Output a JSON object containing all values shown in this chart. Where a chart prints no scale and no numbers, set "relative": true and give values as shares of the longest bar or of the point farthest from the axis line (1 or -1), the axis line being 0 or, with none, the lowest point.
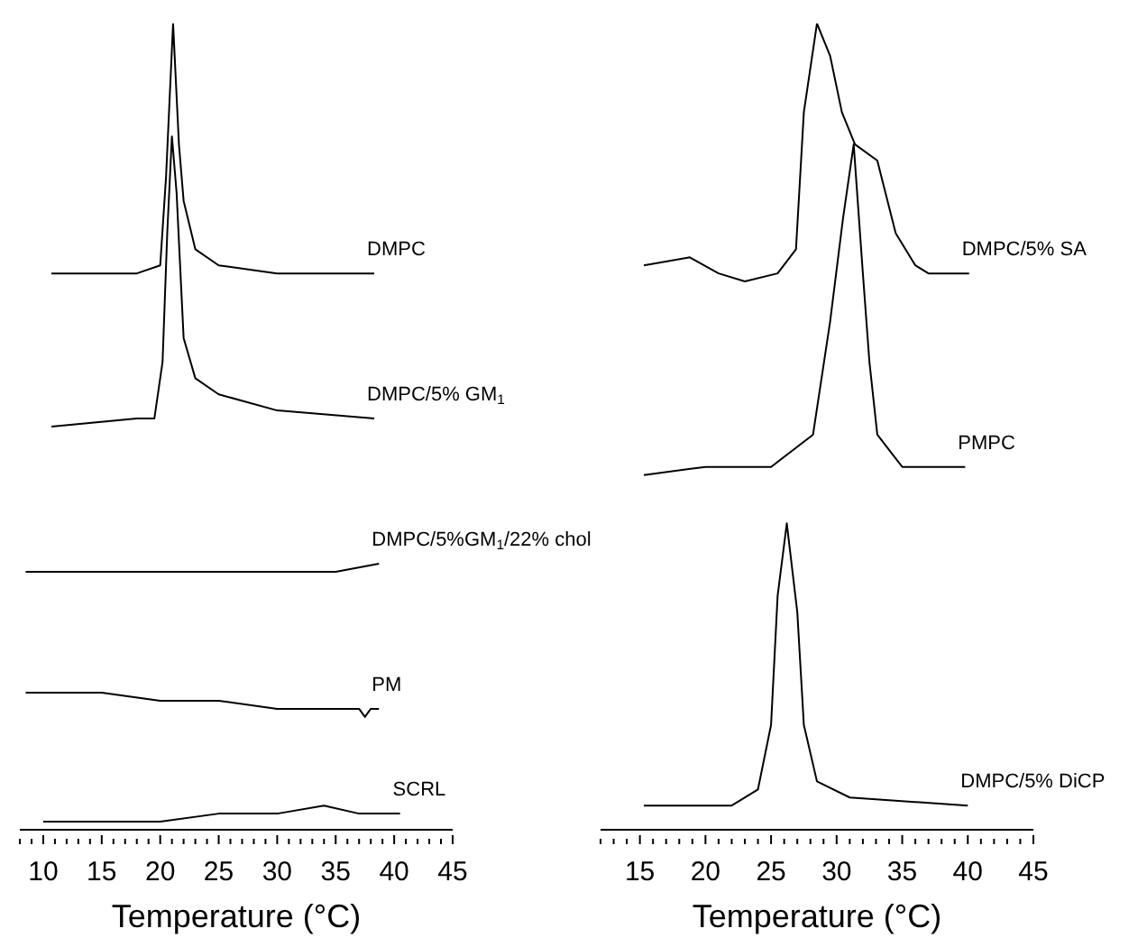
{
  "chart_data": [
    {
      "type": "line",
      "relative": true,
      "xlabel": "Temperature (°C)",
      "xlim": [
        8,
        45
      ],
      "xticks": [
        {
          "value": 8,
          "label": null
        },
        {
          "value": 9,
          "label": null
        },
        10,
        {
          "value": 11,
          "label": null
        },
        {
          "value": 12,
          "label": null
        },
        {
          "value": 13,
          "label": null
        },
        {
          "value": 14,
          "label": null
        },
        15,
        {
          "value": 16,
          "label": null
        },
        {
          "value": 17,
          "label": null
        },
        {
          "value": 18,
          "label": null
        },
        {
          "value": 19,
          "label": null
        },
        20,
        {
          "value": 21,
          "label": null
        },
        {
          "value": 22,
          "label": null
        },
        {
          "value": 23,
          "label": null
        },
        {
          "value": 24,
          "label": null
        },
        25,
        {
          "value": 26,
          "label": null
        },
        {
          "value": 27,
          "label": null
        },
        {
          "value": 28,
          "label": null
        },
        {
          "value": 29,
          "label": null
        },
        30,
        {
          "value": 31,
          "label": null
        },
        {
          "value": 32,
          "label": null
        },
        {
          "value": 33,
          "label": null
        },
        {
          "value": 34,
          "label": null
        },
        35,
        {
          "value": 36,
          "label": null
        },
        {
          "value": 37,
          "label": null
        },
        {
          "value": 38,
          "label": null
        },
        {
          "value": 39,
          "label": null
        },
        40,
        {
          "value": 41,
          "label": null
        },
        {
          "value": 42,
          "label": null
        },
        {
          "value": 43,
          "label": null
        },
        {
          "value": 44,
          "label": null
        },
        45
      ],
      "series": [
        {
          "name": "DMPC",
          "color": "#000000",
          "x": [
            10.7,
            18,
            20,
            20.5,
            21.1,
            21.6,
            22,
            23,
            25,
            30,
            38.3
          ],
          "values": [
            0.69,
            0.69,
            0.7,
            0.81,
            1,
            0.85,
            0.78,
            0.72,
            0.7,
            0.69,
            0.69
          ]
        },
        {
          "name": "DMPC/5% GM$_{1}$",
          "color": "#000000",
          "x": [
            10.7,
            18,
            19.5,
            20.2,
            20.6,
            21,
            21.4,
            22,
            23,
            25,
            30,
            38.3
          ],
          "values": [
            0.5,
            0.51,
            0.51,
            0.58,
            0.74,
            0.86,
            0.79,
            0.61,
            0.56,
            0.54,
            0.52,
            0.51
          ]
        },
        {
          "name": "DMPC/5%GM$_{1}$/22% chol",
          "color": "#000000",
          "x": [
            8.5,
            15,
            20,
            25,
            30,
            35,
            38.7
          ],
          "values": [
            0.32,
            0.32,
            0.32,
            0.32,
            0.32,
            0.32,
            0.33
          ]
        },
        {
          "name": "PM",
          "color": "#000000",
          "x": [
            8.5,
            15,
            20,
            25,
            30,
            35,
            37,
            37.5,
            38,
            38.7
          ],
          "values": [
            0.17,
            0.17,
            0.16,
            0.16,
            0.15,
            0.15,
            0.15,
            0.14,
            0.15,
            0.15
          ]
        },
        {
          "name": "SCRL",
          "color": "#000000",
          "x": [
            10,
            20,
            25,
            30,
            34,
            37,
            40.5
          ],
          "values": [
            0.01,
            0.01,
            0.02,
            0.02,
            0.03,
            0.02,
            0.02
          ]
        }
      ]
    },
    {
      "type": "line",
      "relative": true,
      "xlabel": "Temperature (°C)",
      "xlim": [
        12,
        45
      ],
      "xticks": [
        {
          "value": 12,
          "label": null
        },
        {
          "value": 13,
          "label": null
        },
        {
          "value": 14,
          "label": null
        },
        15,
        {
          "value": 16,
          "label": null
        },
        {
          "value": 17,
          "label": null
        },
        {
          "value": 18,
          "label": null
        },
        {
          "value": 19,
          "label": null
        },
        20,
        {
          "value": 21,
          "label": null
        },
        {
          "value": 22,
          "label": null
        },
        {
          "value": 23,
          "label": null
        },
        {
          "value": 24,
          "label": null
        },
        25,
        {
          "value": 26,
          "label": null
        },
        {
          "value": 27,
          "label": null
        },
        {
          "value": 28,
          "label": null
        },
        {
          "value": 29,
          "label": null
        },
        30,
        {
          "value": 31,
          "label": null
        },
        {
          "value": 32,
          "label": null
        },
        {
          "value": 33,
          "label": null
        },
        {
          "value": 34,
          "label": null
        },
        35,
        {
          "value": 36,
          "label": null
        },
        {
          "value": 37,
          "label": null
        },
        {
          "value": 38,
          "label": null
        },
        {
          "value": 39,
          "label": null
        },
        40,
        {
          "value": 41,
          "label": null
        },
        {
          "value": 42,
          "label": null
        },
        {
          "value": 43,
          "label": null
        },
        {
          "value": 44,
          "label": null
        },
        45
      ],
      "series": [
        {
          "name": "DMPC/5% SA",
          "color": "#000000",
          "x": [
            15.3,
            18.8,
            21,
            23,
            25.5,
            26.9,
            27.5,
            28.5,
            29.5,
            30.4,
            31.4,
            33.1,
            34.5,
            36,
            37,
            40.1
          ],
          "values": [
            0.7,
            0.71,
            0.69,
            0.68,
            0.69,
            0.72,
            0.89,
            1,
            0.96,
            0.89,
            0.85,
            0.83,
            0.74,
            0.7,
            0.69,
            0.69
          ]
        },
        {
          "name": "PMPC",
          "color": "#000000",
          "x": [
            15.3,
            20,
            25,
            28.2,
            29.5,
            30.5,
            31.3,
            32,
            32.5,
            33.1,
            35,
            39.8
          ],
          "values": [
            0.44,
            0.45,
            0.45,
            0.49,
            0.63,
            0.76,
            0.85,
            0.69,
            0.58,
            0.49,
            0.45,
            0.45
          ]
        },
        {
          "name": "DMPC/5% DiCP",
          "color": "#000000",
          "x": [
            15.3,
            17,
            22,
            24,
            25,
            25.5,
            26.2,
            27,
            27.5,
            28.5,
            31,
            40
          ],
          "values": [
            0.03,
            0.03,
            0.03,
            0.05,
            0.13,
            0.29,
            0.38,
            0.27,
            0.13,
            0.06,
            0.04,
            0.03
          ]
        }
      ]
    }
  ]
}
